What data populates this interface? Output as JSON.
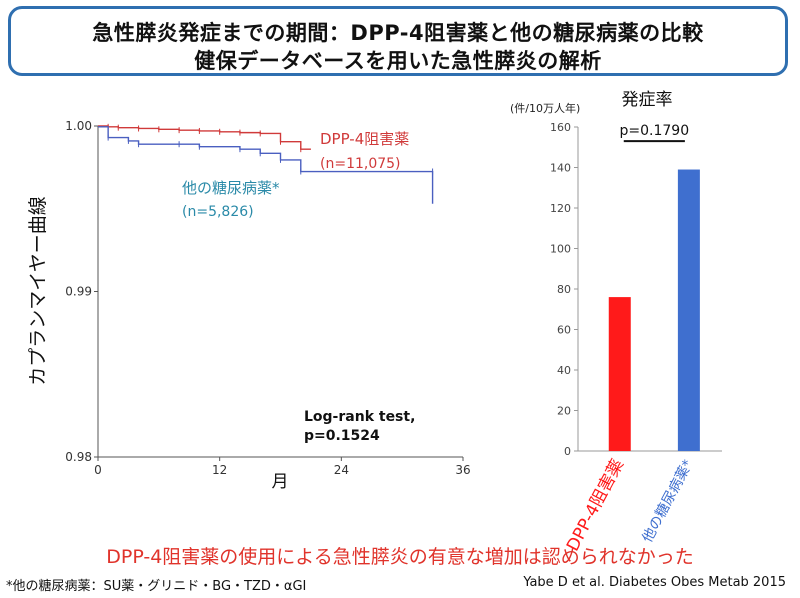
{
  "title": {
    "line1": "急性膵炎発症までの期間：DPP-4阻害薬と他の糖尿病薬の比較",
    "line2": "健保データベースを用いた急性膵炎の解析"
  },
  "colors": {
    "dpp4": "#d03a3a",
    "other": "#4a5fc0",
    "other_label": "#2a8aa8",
    "bar_dpp4": "#ff1a1a",
    "bar_other": "#3f6fcf",
    "title_border": "#2f6fb0",
    "conclusion": "#e0332b"
  },
  "chart_data": [
    {
      "type": "line",
      "ylabel": "カプランマイヤー曲線",
      "xlabel": "月",
      "xlim": [
        0,
        36
      ],
      "ylim": [
        0.98,
        1.0
      ],
      "x_ticks": [
        "0",
        "12",
        "24",
        "36"
      ],
      "y_ticks": [
        "0.98",
        "0.99",
        "1.00"
      ],
      "annotation": [
        "Log-rank test,",
        "p=0.1524"
      ],
      "series": [
        {
          "name": "DPP-4阻害薬",
          "n_label": "(n=11,075)",
          "points": [
            [
              0,
              1.0
            ],
            [
              1,
              0.99995
            ],
            [
              2,
              0.9999
            ],
            [
              4,
              0.99985
            ],
            [
              6,
              0.9998
            ],
            [
              8,
              0.99975
            ],
            [
              10,
              0.9997
            ],
            [
              12,
              0.99965
            ],
            [
              14,
              0.9996
            ],
            [
              16,
              0.99955
            ],
            [
              18,
              0.99905
            ],
            [
              20,
              0.9986
            ],
            [
              21,
              0.9986
            ]
          ]
        },
        {
          "name": "他の糖尿病薬*",
          "n_label": "(n=5,826)",
          "points": [
            [
              0,
              0.99995
            ],
            [
              1,
              0.9993
            ],
            [
              3,
              0.9991
            ],
            [
              4,
              0.9989
            ],
            [
              8,
              0.9989
            ],
            [
              10,
              0.99875
            ],
            [
              14,
              0.9986
            ],
            [
              16,
              0.99835
            ],
            [
              18,
              0.99795
            ],
            [
              20,
              0.99725
            ],
            [
              33,
              0.99725
            ],
            [
              33,
              0.9953
            ]
          ]
        }
      ],
      "grid": false
    },
    {
      "type": "bar",
      "title": "発症率",
      "unit_label": "(件/10万人年)",
      "categories": [
        "DPP-4阻害薬",
        "他の糖尿病薬*"
      ],
      "values": [
        76,
        139
      ],
      "ylim": [
        0,
        160
      ],
      "y_ticks": [
        "0",
        "20",
        "40",
        "60",
        "80",
        "100",
        "120",
        "140",
        "160"
      ],
      "annotation": "p=0.1790"
    }
  ],
  "conclusion": "DPP-4阻害薬の使用による急性膵炎の有意な増加は認められなかった",
  "footnote": "*他の糖尿病薬：SU薬・グリニド・BG・TZD・αGI",
  "citation": "Yabe D et al. Diabetes Obes Metab 2015"
}
